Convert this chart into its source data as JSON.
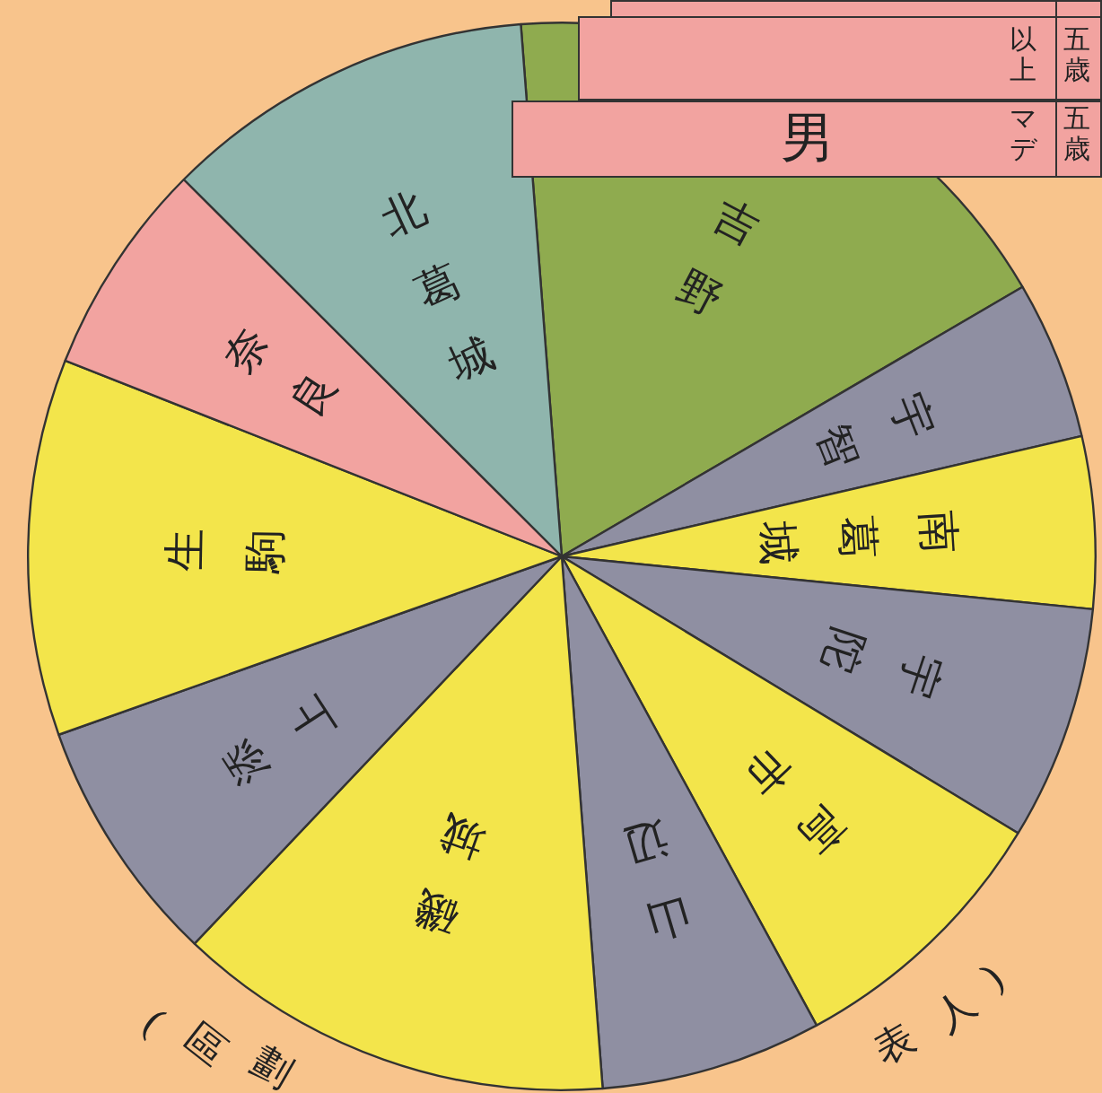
{
  "chart_data": {
    "type": "pie",
    "categories": [
      "吉野",
      "宇智",
      "南葛城",
      "宇陀",
      "高市",
      "山辺",
      "磯城",
      "添上",
      "生駒",
      "奈良",
      "北葛城"
    ],
    "values": [
      17.8,
      4.8,
      5.2,
      7.1,
      8.4,
      6.7,
      13.3,
      7.5,
      11.4,
      6.5,
      11.3
    ],
    "colors": [
      "#8fab4f",
      "#8f8fa2",
      "#f3e54b",
      "#8f8fa2",
      "#f3e54b",
      "#8f8fa2",
      "#f3e54b",
      "#8f8fa2",
      "#f3e54b",
      "#f2a3a0",
      "#8fb5ad"
    ],
    "legend": false,
    "annotations": [
      "(區劃",
      "表人)",
      "以上",
      "五歳",
      "マデ",
      "五歳",
      "男"
    ]
  }
}
